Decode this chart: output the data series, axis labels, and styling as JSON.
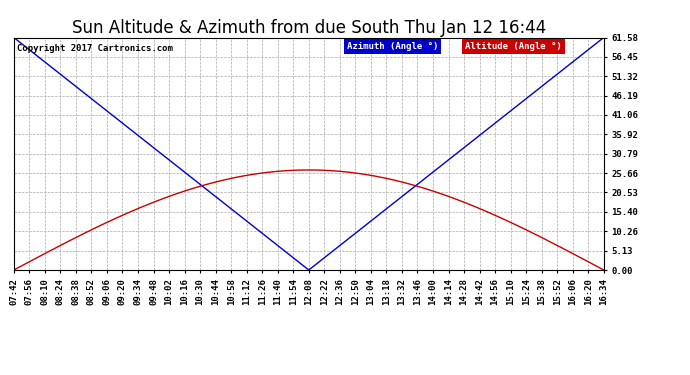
{
  "title": "Sun Altitude & Azimuth from due South Thu Jan 12 16:44",
  "copyright": "Copyright 2017 Cartronics.com",
  "legend_azimuth": "Azimuth (Angle °)",
  "legend_altitude": "Altitude (Angle °)",
  "yticks": [
    0.0,
    5.13,
    10.26,
    15.4,
    20.53,
    25.66,
    30.79,
    35.92,
    41.06,
    46.19,
    51.32,
    56.45,
    61.58
  ],
  "xtick_labels": [
    "07:42",
    "07:56",
    "08:10",
    "08:24",
    "08:38",
    "08:52",
    "09:06",
    "09:20",
    "09:34",
    "09:48",
    "10:02",
    "10:16",
    "10:30",
    "10:44",
    "10:58",
    "11:12",
    "11:26",
    "11:40",
    "11:54",
    "12:08",
    "12:22",
    "12:36",
    "12:50",
    "13:04",
    "13:18",
    "13:32",
    "13:46",
    "14:00",
    "14:14",
    "14:28",
    "14:42",
    "14:56",
    "15:10",
    "15:24",
    "15:38",
    "15:52",
    "16:06",
    "16:20",
    "16:34"
  ],
  "azimuth_color": "#0000cc",
  "altitude_color": "#cc0000",
  "background_color": "#ffffff",
  "grid_color": "#aaaaaa",
  "title_fontsize": 12,
  "tick_fontsize": 6.5,
  "ymax": 61.58,
  "ymin": 0.0,
  "alt_peak": 26.5,
  "az_peak_idx": 19,
  "n_points": 39
}
